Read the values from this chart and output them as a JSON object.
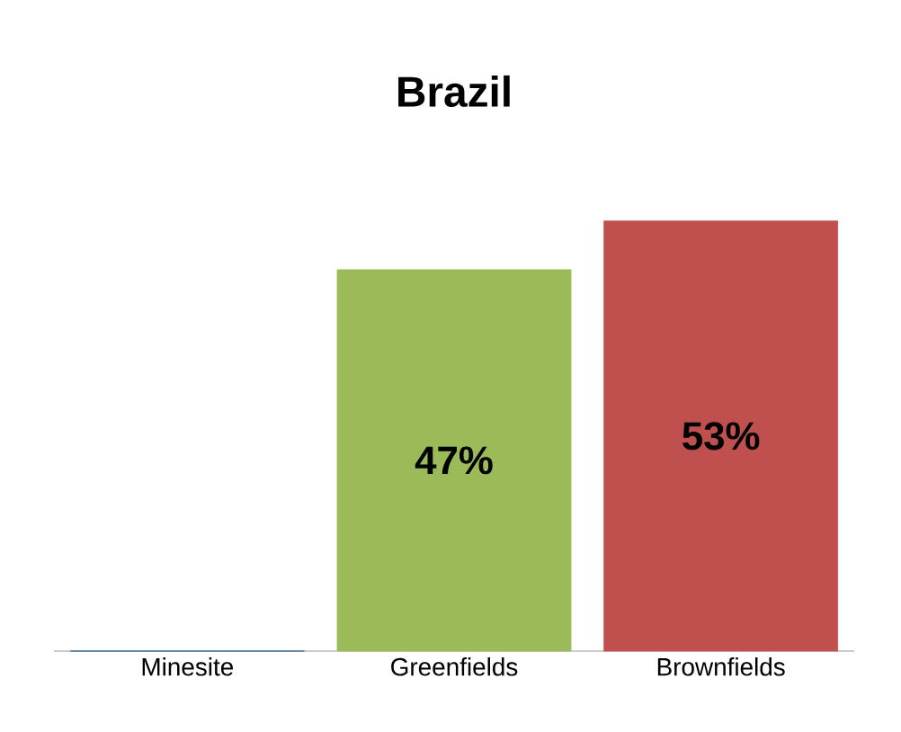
{
  "chart_data": {
    "type": "bar",
    "title": "Brazil",
    "categories": [
      "Minesite",
      "Greenfields",
      "Brownfields"
    ],
    "values": [
      0,
      47,
      53
    ],
    "colors": [
      "#3d6396",
      "#9bbb59",
      "#c0504d"
    ],
    "value_labels": [
      null,
      "47%",
      "53%"
    ],
    "tick_labels": "x"
  }
}
